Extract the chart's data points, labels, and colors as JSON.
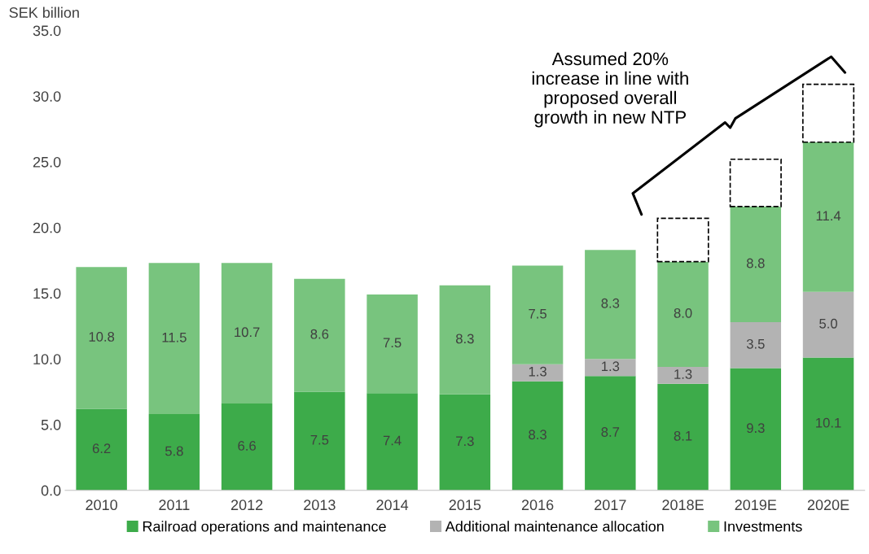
{
  "chart_data": {
    "type": "bar",
    "stacked": true,
    "ylabel": "SEK billion",
    "categories": [
      "2010",
      "2011",
      "2012",
      "2013",
      "2014",
      "2015",
      "2016",
      "2017",
      "2018E",
      "2019E",
      "2020E"
    ],
    "series": [
      {
        "name": "Railroad operations and maintenance",
        "color": "#3dab4a",
        "values": [
          6.2,
          5.8,
          6.6,
          7.5,
          7.4,
          7.3,
          8.3,
          8.7,
          8.1,
          9.3,
          10.1
        ],
        "value_labels": [
          "6.2",
          "5.8",
          "6.6",
          "7.5",
          "7.4",
          "7.3",
          "8.3",
          "8.7",
          "8.1",
          "9.3",
          "10.1"
        ]
      },
      {
        "name": "Additional maintenance allocation",
        "color": "#b3b3b3",
        "values": [
          null,
          null,
          null,
          null,
          null,
          null,
          1.3,
          1.3,
          1.3,
          3.5,
          5.0
        ],
        "value_labels": [
          null,
          null,
          null,
          null,
          null,
          null,
          "1.3",
          "1.3",
          "1.3",
          "3.5",
          "5.0"
        ]
      },
      {
        "name": "Investments",
        "color": "#78c47e",
        "values": [
          10.8,
          11.5,
          10.7,
          8.6,
          7.5,
          8.3,
          7.5,
          8.3,
          8.0,
          8.8,
          11.4
        ],
        "value_labels": [
          "10.8",
          "11.5",
          "10.7",
          "8.6",
          "7.5",
          "8.3",
          "7.5",
          "8.3",
          "8.0",
          "8.8",
          "11.4"
        ]
      },
      {
        "color": "#ffffff",
        "line_style": "dashed",
        "values": [
          null,
          null,
          null,
          null,
          null,
          null,
          null,
          null,
          3.3,
          3.6,
          4.4
        ]
      }
    ],
    "ylim": [
      0,
      35
    ],
    "yticks": [
      {
        "value": 0,
        "label": "0.0"
      },
      {
        "value": 5,
        "label": "5.0"
      },
      {
        "value": 10,
        "label": "10.0"
      },
      {
        "value": 15,
        "label": "15.0"
      },
      {
        "value": 20,
        "label": "20.0"
      },
      {
        "value": 25,
        "label": "25.0"
      },
      {
        "value": 30,
        "label": "30.0"
      },
      {
        "value": 35,
        "label": "35.0"
      }
    ],
    "annotations": [
      "Assumed 20%\nincrease in line with\nproposed overall\ngrowth in new NTP"
    ],
    "grid": false,
    "legend": "bottom"
  }
}
